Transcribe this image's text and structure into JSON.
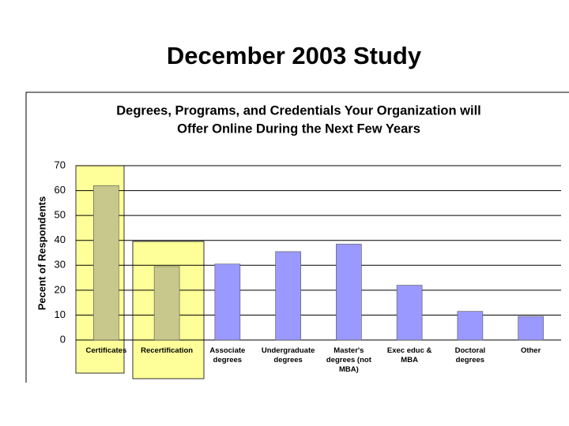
{
  "slide_title": "December 2003 Study",
  "chart_data": {
    "type": "bar",
    "title": [
      "Degrees, Programs, and Credentials Your Organization will",
      "Offer Online During the Next Few Years"
    ],
    "y_label": "Pecent of Respondents",
    "categories": [
      "Certificates",
      "Recertification",
      "Associate degrees",
      "Undergraduate degrees",
      "Master's degrees (not MBA)",
      "Exec educ & MBA",
      "Doctoral degrees",
      "Other"
    ],
    "values": [
      62,
      29.5,
      30.5,
      35.5,
      38.5,
      22,
      11.5,
      9.5
    ],
    "colors": [
      "#c8c88c",
      "#c8c88c",
      "#9999ff",
      "#9999ff",
      "#9999ff",
      "#9999ff",
      "#9999ff",
      "#9999ff"
    ],
    "ylim": [
      0,
      70
    ],
    "yticks": [
      0,
      10,
      20,
      30,
      40,
      50,
      60,
      70
    ],
    "grid": true
  }
}
